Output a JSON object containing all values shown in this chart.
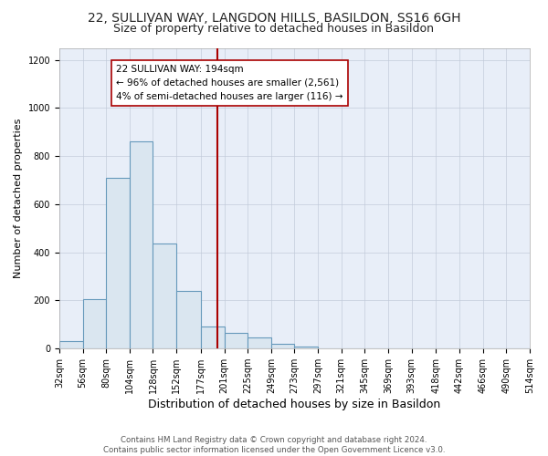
{
  "title1": "22, SULLIVAN WAY, LANGDON HILLS, BASILDON, SS16 6GH",
  "title2": "Size of property relative to detached houses in Basildon",
  "xlabel": "Distribution of detached houses by size in Basildon",
  "ylabel": "Number of detached properties",
  "bin_edges": [
    32,
    56,
    80,
    104,
    128,
    152,
    177,
    201,
    225,
    249,
    273,
    297,
    321,
    345,
    369,
    393,
    418,
    442,
    466,
    490,
    514
  ],
  "bar_heights": [
    32,
    207,
    710,
    863,
    437,
    240,
    90,
    65,
    47,
    20,
    10,
    0,
    0,
    0,
    0,
    0,
    0,
    0,
    0,
    0
  ],
  "bar_color": "#dae6f0",
  "bar_edge_color": "#6699bb",
  "vline_x": 194,
  "vline_color": "#aa0000",
  "annotation_text": "22 SULLIVAN WAY: 194sqm\n← 96% of detached houses are smaller (2,561)\n4% of semi-detached houses are larger (116) →",
  "annotation_box_color": "#ffffff",
  "annotation_box_edge": "#aa0000",
  "bg_color": "#ffffff",
  "plot_bg_color": "#e8eef8",
  "ylim": [
    0,
    1250
  ],
  "yticks": [
    0,
    200,
    400,
    600,
    800,
    1000,
    1200
  ],
  "footer": "Contains HM Land Registry data © Crown copyright and database right 2024.\nContains public sector information licensed under the Open Government Licence v3.0.",
  "title1_fontsize": 10,
  "title2_fontsize": 9,
  "xlabel_fontsize": 9,
  "ylabel_fontsize": 8,
  "tick_fontsize": 7,
  "annot_fontsize": 7.5
}
